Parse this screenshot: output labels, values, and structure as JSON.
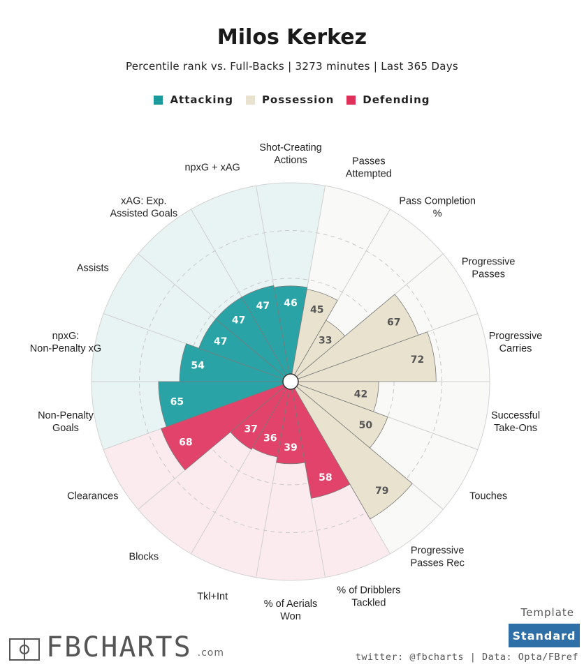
{
  "header": {
    "title": "Milos Kerkez",
    "subtitle": "Percentile rank vs. Full-Backs | 3273 minutes | Last 365 Days"
  },
  "legend": [
    {
      "label": "Attacking",
      "color": "#1a9a9a"
    },
    {
      "label": "Possession",
      "color": "#e8e2cf"
    },
    {
      "label": "Defending",
      "color": "#e0305a"
    }
  ],
  "chart_data": {
    "type": "radar",
    "range": [
      0,
      100
    ],
    "rings": [
      25,
      50,
      75,
      100
    ],
    "stats": [
      {
        "label": "Shot-Creating Actions",
        "value": 46,
        "group": "Attacking"
      },
      {
        "label": "Passes Attempted",
        "value": 45,
        "group": "Possession"
      },
      {
        "label": "Pass Completion %",
        "value": 33,
        "group": "Possession"
      },
      {
        "label": "Progressive Passes",
        "value": 67,
        "group": "Possession"
      },
      {
        "label": "Progressive Carries",
        "value": 72,
        "group": "Possession"
      },
      {
        "label": "Successful Take-Ons",
        "value": 42,
        "group": "Possession"
      },
      {
        "label": "Touches",
        "value": 50,
        "group": "Possession"
      },
      {
        "label": "Progressive Passes Rec",
        "value": 79,
        "group": "Possession"
      },
      {
        "label": "% of Dribblers Tackled",
        "value": 58,
        "group": "Defending"
      },
      {
        "label": "% of Aerials Won",
        "value": 39,
        "group": "Defending"
      },
      {
        "label": "Tkl+Int",
        "value": 36,
        "group": "Defending"
      },
      {
        "label": "Blocks",
        "value": 37,
        "group": "Defending"
      },
      {
        "label": "Clearances",
        "value": 68,
        "group": "Defending"
      },
      {
        "label": "Non-Penalty Goals",
        "value": 65,
        "group": "Attacking"
      },
      {
        "label": "npxG: Non-Penalty xG",
        "value": 54,
        "group": "Attacking"
      },
      {
        "label": "Assists",
        "value": 47,
        "group": "Attacking"
      },
      {
        "label": "xAG: Exp. Assisted Goals",
        "value": 47,
        "group": "Attacking"
      },
      {
        "label": "npxG + xAG",
        "value": 47,
        "group": "Attacking"
      }
    ],
    "group_colors": {
      "Attacking": {
        "bar": "#2aa3a7",
        "bg": "#e8f4f4"
      },
      "Possession": {
        "bar": "#e8e2cf",
        "bg": "#f9f9f7"
      },
      "Defending": {
        "bar": "#e2436b",
        "bg": "#fcebee"
      }
    }
  },
  "footer": {
    "brand": "FBCHARTS",
    "brand_domain": ".com",
    "template_label": "Template",
    "template_value": "Standard",
    "credit": "twitter: @fbcharts | Data: Opta/FBref"
  }
}
